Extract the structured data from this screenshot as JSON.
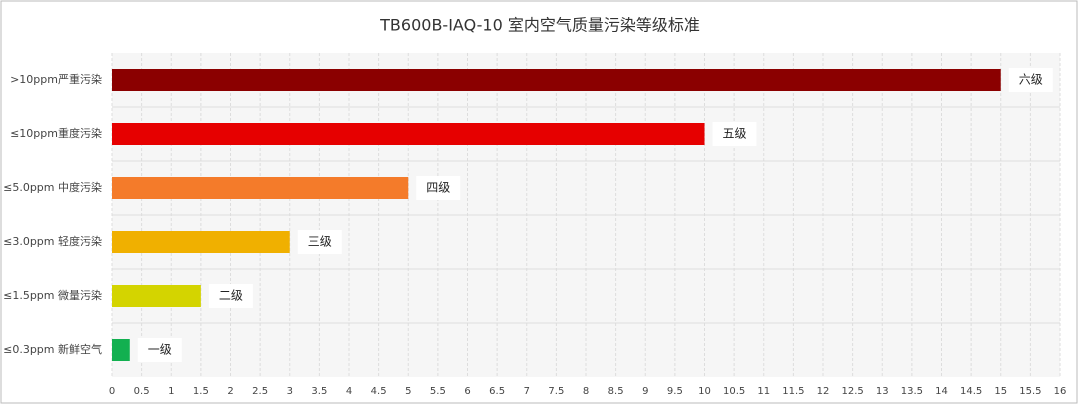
{
  "chart_data": {
    "type": "bar",
    "orientation": "horizontal",
    "title": "TB600B-IAQ-10 室内空气质量污染等级标准",
    "categories": [
      ">10ppm严重污染",
      "≤10ppm重度污染",
      "≤5.0ppm 中度污染",
      "≤3.0ppm 轻度污染",
      "≤1.5ppm 微量污染",
      "≤0.3ppm 新鲜空气"
    ],
    "values": [
      15,
      10,
      5,
      3,
      1.5,
      0.3
    ],
    "bar_labels": [
      "六级",
      "五级",
      "四级",
      "三级",
      "二级",
      "一级"
    ],
    "colors": [
      "#8b0000",
      "#e60000",
      "#f47b2a",
      "#f0b000",
      "#d4d400",
      "#12b050"
    ],
    "xlim": [
      0,
      16
    ],
    "xticks": [
      0,
      0.5,
      1,
      1.5,
      2,
      2.5,
      3,
      3.5,
      4,
      4.5,
      5,
      5.5,
      6,
      6.5,
      7,
      7.5,
      8,
      8.5,
      9,
      9.5,
      10,
      10.5,
      11,
      11.5,
      12,
      12.5,
      13,
      13.5,
      14,
      14.5,
      15,
      15.5,
      16
    ],
    "grid": true
  }
}
